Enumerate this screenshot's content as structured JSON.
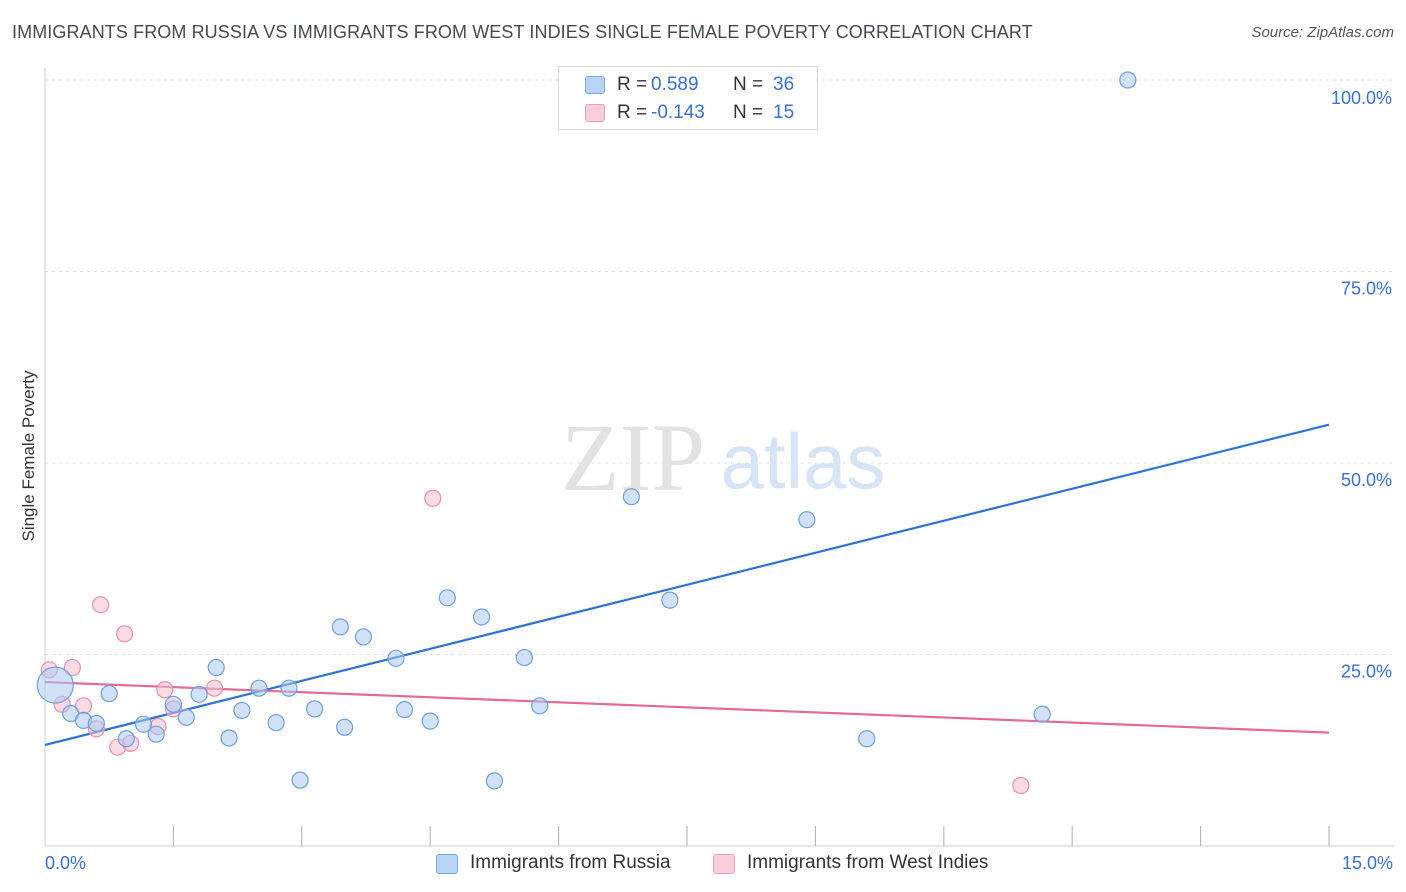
{
  "title": "IMMIGRANTS FROM RUSSIA VS IMMIGRANTS FROM WEST INDIES SINGLE FEMALE POVERTY CORRELATION CHART",
  "source": "Source: ZipAtlas.com",
  "watermark": {
    "zip": "ZIP",
    "atlas": "atlas"
  },
  "legend": {
    "russia": {
      "r_label": "R =",
      "r_value": "0.589",
      "n_label": "N =",
      "n_value": "36"
    },
    "west_indies": {
      "r_label": "R =",
      "r_value": "-0.143",
      "n_label": "N =",
      "n_value": "15"
    }
  },
  "colors": {
    "russia_fill": "#a9c8f2",
    "russia_stroke": "#6f9fe0",
    "russia_line": "#2f72d0",
    "west_indies_fill": "#f7bfd0",
    "west_indies_stroke": "#eb8fac",
    "west_indies_line": "#e26a95",
    "axis_label": "#3b6fd1",
    "grid": "#dddddd"
  },
  "chart_data": {
    "type": "scatter",
    "title": "IMMIGRANTS FROM RUSSIA VS IMMIGRANTS FROM WEST INDIES SINGLE FEMALE POVERTY CORRELATION CHART",
    "xlabel": "",
    "ylabel": "Single Female Poverty",
    "xlim": [
      0,
      15
    ],
    "ylim": [
      0,
      100
    ],
    "x_tick_labels": [
      "0.0%",
      "15.0%"
    ],
    "y_ticks": [
      25,
      50,
      75,
      100
    ],
    "y_tick_labels": [
      "25.0%",
      "50.0%",
      "75.0%",
      "100.0%"
    ],
    "grid": true,
    "legend_position": "top-center",
    "series": [
      {
        "name": "Immigrants from Russia",
        "r": 0.589,
        "n": 36,
        "trend": {
          "x": [
            0,
            15
          ],
          "y": [
            13.2,
            55.0
          ]
        },
        "points": [
          {
            "x": 0.12,
            "y": 21.0,
            "big": true
          },
          {
            "x": 0.3,
            "y": 17.3
          },
          {
            "x": 0.45,
            "y": 16.4
          },
          {
            "x": 0.6,
            "y": 16.0
          },
          {
            "x": 0.75,
            "y": 19.9
          },
          {
            "x": 0.95,
            "y": 14.0
          },
          {
            "x": 1.15,
            "y": 15.9
          },
          {
            "x": 1.3,
            "y": 14.6
          },
          {
            "x": 1.5,
            "y": 18.5
          },
          {
            "x": 1.65,
            "y": 16.8
          },
          {
            "x": 1.8,
            "y": 19.8
          },
          {
            "x": 2.0,
            "y": 23.3
          },
          {
            "x": 2.15,
            "y": 14.1
          },
          {
            "x": 2.3,
            "y": 17.7
          },
          {
            "x": 2.5,
            "y": 20.6
          },
          {
            "x": 2.7,
            "y": 16.1
          },
          {
            "x": 2.85,
            "y": 20.6
          },
          {
            "x": 2.98,
            "y": 8.6
          },
          {
            "x": 3.15,
            "y": 17.9
          },
          {
            "x": 3.45,
            "y": 28.6
          },
          {
            "x": 3.5,
            "y": 15.5
          },
          {
            "x": 3.72,
            "y": 27.3
          },
          {
            "x": 4.1,
            "y": 24.5
          },
          {
            "x": 4.2,
            "y": 17.8
          },
          {
            "x": 4.5,
            "y": 16.3
          },
          {
            "x": 4.7,
            "y": 32.4
          },
          {
            "x": 5.1,
            "y": 29.9
          },
          {
            "x": 5.25,
            "y": 8.5
          },
          {
            "x": 5.6,
            "y": 24.6
          },
          {
            "x": 5.78,
            "y": 18.3
          },
          {
            "x": 6.85,
            "y": 45.6
          },
          {
            "x": 7.3,
            "y": 32.1
          },
          {
            "x": 8.9,
            "y": 42.6
          },
          {
            "x": 9.6,
            "y": 14.0
          },
          {
            "x": 11.65,
            "y": 17.2
          },
          {
            "x": 12.65,
            "y": 100.0
          }
        ]
      },
      {
        "name": "Immigrants from West Indies",
        "r": -0.143,
        "n": 15,
        "trend": {
          "x": [
            0,
            15
          ],
          "y": [
            21.4,
            14.8
          ]
        },
        "points": [
          {
            "x": 0.05,
            "y": 23.0
          },
          {
            "x": 0.2,
            "y": 18.5
          },
          {
            "x": 0.32,
            "y": 23.3
          },
          {
            "x": 0.45,
            "y": 18.3
          },
          {
            "x": 0.6,
            "y": 15.3
          },
          {
            "x": 0.65,
            "y": 31.5
          },
          {
            "x": 0.85,
            "y": 12.9
          },
          {
            "x": 0.93,
            "y": 27.7
          },
          {
            "x": 1.0,
            "y": 13.4
          },
          {
            "x": 1.32,
            "y": 15.6
          },
          {
            "x": 1.4,
            "y": 20.4
          },
          {
            "x": 1.5,
            "y": 17.9
          },
          {
            "x": 1.98,
            "y": 20.6
          },
          {
            "x": 4.53,
            "y": 45.4
          },
          {
            "x": 11.4,
            "y": 7.9
          }
        ]
      }
    ]
  }
}
